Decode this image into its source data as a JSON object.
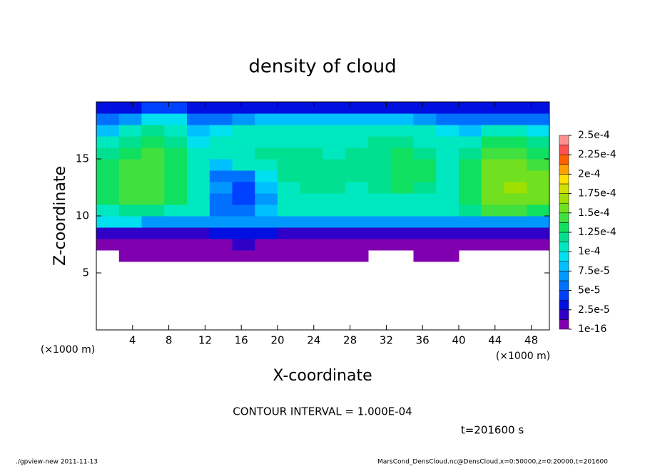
{
  "chart_data": {
    "type": "heatmap",
    "title": "density of cloud",
    "x_label": "X-coordinate",
    "y_label": "Z-coordinate",
    "x_unit": "(×1000 m)",
    "contour_note": "CONTOUR INTERVAL = 1.000E-04",
    "time_note": "t=201600 s",
    "footer_left": "./gpview-new  2011-11-13",
    "footer_right": "MarsCond_DensCloud.nc@DensCloud,x=0:50000,z=0:20000,t=201600",
    "xlim": [
      0,
      50
    ],
    "ylim": [
      0,
      20
    ],
    "xticks": [
      4,
      8,
      12,
      16,
      20,
      24,
      28,
      32,
      36,
      40,
      44,
      48
    ],
    "yticks": [
      5,
      10,
      15
    ],
    "x": [
      1.25,
      3.75,
      6.25,
      8.75,
      11.25,
      13.75,
      16.25,
      18.75,
      21.25,
      23.75,
      26.25,
      28.75,
      31.25,
      33.75,
      36.25,
      38.75,
      41.25,
      43.75,
      46.25,
      48.75
    ],
    "y": [
      0.5,
      1.5,
      2.5,
      3.5,
      4.5,
      5.5,
      6.5,
      7.5,
      8.5,
      9.5,
      10.5,
      11.5,
      12.5,
      13.5,
      14.5,
      15.5,
      16.5,
      17.5,
      18.5,
      19.5
    ],
    "z": [
      [
        null,
        null,
        null,
        null,
        null,
        null,
        null,
        null,
        null,
        null,
        null,
        null,
        null,
        null,
        null,
        null,
        null,
        null,
        null,
        null
      ],
      [
        null,
        null,
        null,
        null,
        null,
        null,
        null,
        null,
        null,
        null,
        null,
        null,
        null,
        null,
        null,
        null,
        null,
        null,
        null,
        null
      ],
      [
        null,
        null,
        null,
        null,
        null,
        null,
        null,
        null,
        null,
        null,
        null,
        null,
        null,
        null,
        null,
        null,
        null,
        null,
        null,
        null
      ],
      [
        null,
        null,
        null,
        null,
        null,
        null,
        null,
        null,
        null,
        null,
        null,
        null,
        null,
        null,
        null,
        null,
        null,
        null,
        null,
        null
      ],
      [
        null,
        null,
        null,
        null,
        null,
        null,
        null,
        null,
        null,
        null,
        null,
        null,
        null,
        null,
        null,
        null,
        null,
        null,
        null,
        null
      ],
      [
        null,
        null,
        null,
        null,
        null,
        null,
        null,
        null,
        null,
        null,
        null,
        null,
        null,
        null,
        null,
        null,
        null,
        null,
        null,
        null
      ],
      [
        null,
        5e-06,
        5e-06,
        5e-06,
        5e-06,
        5e-06,
        5e-06,
        5e-06,
        5e-06,
        5e-06,
        5e-06,
        5e-06,
        null,
        null,
        5e-06,
        5e-06,
        null,
        null,
        null,
        null
      ],
      [
        5e-06,
        5e-06,
        5e-06,
        5e-06,
        5e-06,
        5e-06,
        2e-05,
        5e-06,
        5e-06,
        5e-06,
        5e-06,
        5e-06,
        5e-06,
        5e-06,
        5e-06,
        5e-06,
        5e-06,
        5e-06,
        5e-06,
        5e-06
      ],
      [
        2e-05,
        2e-05,
        2e-05,
        2e-05,
        2e-05,
        3e-05,
        3e-05,
        3e-05,
        2e-05,
        2e-05,
        2e-05,
        2e-05,
        2e-05,
        2e-05,
        2e-05,
        2e-05,
        2e-05,
        2e-05,
        2e-05,
        2e-05
      ],
      [
        9e-05,
        9e-05,
        7e-05,
        7e-05,
        7e-05,
        7e-05,
        7e-05,
        7e-05,
        7e-05,
        7e-05,
        7e-05,
        7e-05,
        7e-05,
        7e-05,
        7e-05,
        7e-05,
        7e-05,
        7e-05,
        7e-05,
        7e-05
      ],
      [
        0.00011,
        0.00012,
        0.00012,
        0.00011,
        0.0001,
        5e-05,
        6e-05,
        8e-05,
        0.0001,
        0.000105,
        0.000105,
        0.000105,
        0.000105,
        0.000105,
        0.000105,
        0.000105,
        0.00012,
        0.00014,
        0.00014,
        0.00013
      ],
      [
        0.00013,
        0.00014,
        0.00014,
        0.00013,
        0.000105,
        6e-05,
        4e-05,
        7e-05,
        0.000105,
        0.00011,
        0.00011,
        0.00011,
        0.00011,
        0.00011,
        0.00011,
        0.00011,
        0.00013,
        0.000155,
        0.00016,
        0.00015
      ],
      [
        0.000135,
        0.000145,
        0.000145,
        0.000135,
        0.0001,
        7e-05,
        4e-05,
        8e-05,
        0.00011,
        0.000115,
        0.000115,
        0.00011,
        0.000115,
        0.000125,
        0.00012,
        0.00011,
        0.000135,
        0.00016,
        0.000165,
        0.000155
      ],
      [
        0.000135,
        0.000145,
        0.000145,
        0.000135,
        0.00011,
        6e-05,
        5e-05,
        9e-05,
        0.000115,
        0.00012,
        0.000115,
        0.000115,
        0.00012,
        0.00013,
        0.000125,
        0.00011,
        0.000135,
        0.00016,
        0.00016,
        0.00015
      ],
      [
        0.00013,
        0.00014,
        0.000145,
        0.000135,
        0.00011,
        8e-05,
        0.0001,
        0.00011,
        0.000115,
        0.000115,
        0.000115,
        0.000115,
        0.00012,
        0.00013,
        0.000125,
        0.00011,
        0.00013,
        0.000155,
        0.000155,
        0.000145
      ],
      [
        0.00012,
        0.000135,
        0.00014,
        0.00013,
        0.0001,
        0.000105,
        0.00011,
        0.000115,
        0.000115,
        0.000115,
        0.00011,
        0.000115,
        0.00012,
        0.000125,
        0.00012,
        0.000105,
        0.00012,
        0.000145,
        0.000145,
        0.000135
      ],
      [
        0.000105,
        0.00012,
        0.00013,
        0.00012,
        9e-05,
        0.000105,
        0.00011,
        0.00011,
        0.00011,
        0.00011,
        0.00011,
        0.00011,
        0.000115,
        0.000115,
        0.00011,
        0.0001,
        0.000105,
        0.00013,
        0.00013,
        0.00012
      ],
      [
        8e-05,
        0.0001,
        0.000115,
        0.00011,
        8e-05,
        9e-05,
        0.0001,
        0.000105,
        0.000105,
        0.000105,
        0.000105,
        0.000105,
        0.000105,
        0.000105,
        0.0001,
        9e-05,
        8e-05,
        0.0001,
        0.0001,
        9e-05
      ],
      [
        5e-05,
        7e-05,
        9e-05,
        9e-05,
        6e-05,
        6e-05,
        7e-05,
        8e-05,
        8e-05,
        8e-05,
        8e-05,
        8e-05,
        8e-05,
        8e-05,
        7e-05,
        6e-05,
        5e-05,
        6e-05,
        6e-05,
        5e-05
      ],
      [
        3e-05,
        3e-05,
        4e-05,
        4e-05,
        3e-05,
        3e-05,
        3e-05,
        3e-05,
        3e-05,
        3e-05,
        3e-05,
        3e-05,
        3e-05,
        3e-05,
        3e-05,
        3e-05,
        3e-05,
        3e-05,
        3e-05,
        3e-05
      ]
    ],
    "levels": [
      1e-16,
      1.25e-05,
      2.5e-05,
      3.75e-05,
      5e-05,
      6.25e-05,
      7.5e-05,
      8.75e-05,
      0.0001,
      0.0001125,
      0.000125,
      0.0001375,
      0.00015,
      0.0001625,
      0.000175,
      0.0001875,
      0.0002,
      0.0002125,
      0.000225,
      0.0002375,
      0.00025
    ],
    "colors": [
      "#8000b0",
      "#3000c8",
      "#0010e0",
      "#0040ff",
      "#0070ff",
      "#0098ff",
      "#00c0ff",
      "#00e0f0",
      "#00e8c0",
      "#00e090",
      "#10e060",
      "#40e040",
      "#70e020",
      "#a0e000",
      "#d0e000",
      "#ffe000",
      "#ffa000",
      "#ff6000",
      "#ff5050",
      "#ff9090"
    ],
    "colorbar_ticks": [
      {
        "value": 1e-16,
        "label": "1e-16"
      },
      {
        "value": 2.5e-05,
        "label": "2.5e-5"
      },
      {
        "value": 5e-05,
        "label": "5e-5"
      },
      {
        "value": 7.5e-05,
        "label": "7.5e-5"
      },
      {
        "value": 0.0001,
        "label": "1e-4"
      },
      {
        "value": 0.000125,
        "label": "1.25e-4"
      },
      {
        "value": 0.00015,
        "label": "1.5e-4"
      },
      {
        "value": 0.000175,
        "label": "1.75e-4"
      },
      {
        "value": 0.0002,
        "label": "2e-4"
      },
      {
        "value": 0.000225,
        "label": "2.25e-4"
      },
      {
        "value": 0.00025,
        "label": "2.5e-4"
      }
    ]
  }
}
